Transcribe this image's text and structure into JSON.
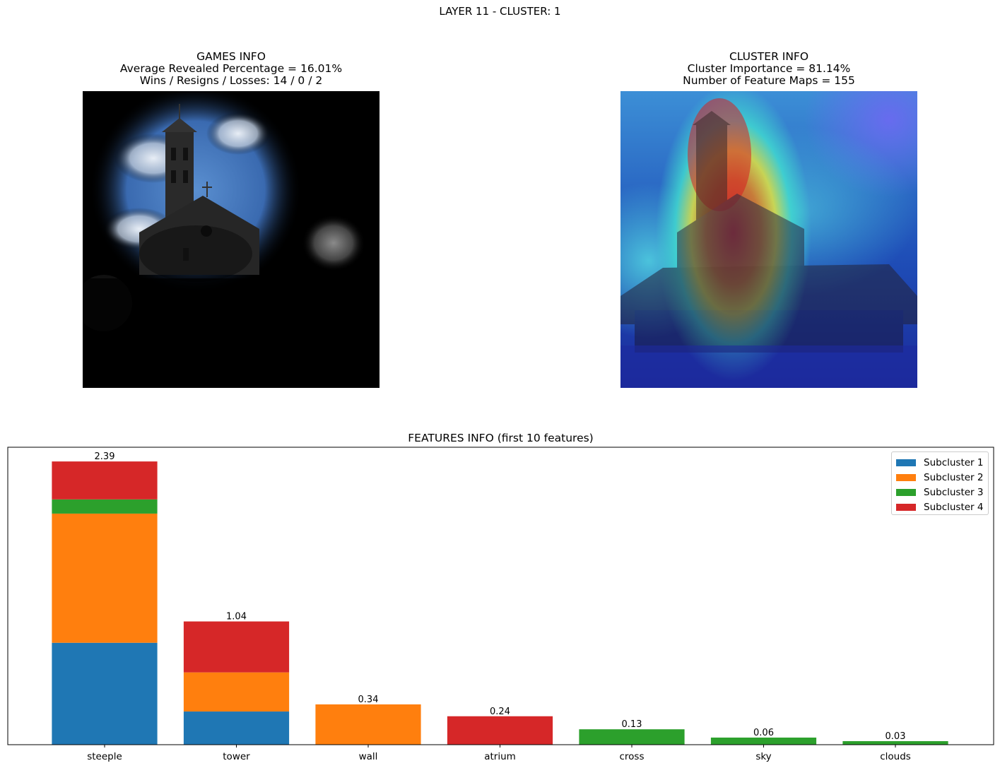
{
  "figure": {
    "title": "LAYER 11 - CLUSTER: 1"
  },
  "games_panel": {
    "title_lines": [
      "GAMES INFO",
      "Average Revealed Percentage = 16.01%",
      "Wins / Resigns / Losses: 14 / 0 / 2"
    ],
    "image": "church photo with revealed regions"
  },
  "cluster_panel": {
    "title_lines": [
      "CLUSTER INFO",
      "Cluster Importance = 81.14%",
      "Number of Feature Maps = 155"
    ],
    "image": "church photo with heatmap overlay"
  },
  "chart_data": {
    "type": "bar",
    "stacked": true,
    "title": "FEATURES INFO (first 10 features)",
    "categories": [
      "steeple",
      "tower",
      "wall",
      "atrium",
      "cross",
      "sky",
      "clouds"
    ],
    "series": [
      {
        "name": "Subcluster 1",
        "color": "#1f77b4",
        "values": [
          0.86,
          0.28,
          0,
          0,
          0,
          0,
          0
        ]
      },
      {
        "name": "Subcluster 2",
        "color": "#ff7f0e",
        "values": [
          1.09,
          0.33,
          0.34,
          0,
          0,
          0,
          0
        ]
      },
      {
        "name": "Subcluster 3",
        "color": "#2ca02c",
        "values": [
          0.12,
          0,
          0,
          0,
          0.13,
          0.06,
          0.03
        ]
      },
      {
        "name": "Subcluster 4",
        "color": "#d62728",
        "values": [
          0.32,
          0.43,
          0,
          0.24,
          0,
          0,
          0
        ]
      }
    ],
    "totals": [
      2.39,
      1.04,
      0.34,
      0.24,
      0.13,
      0.06,
      0.03
    ],
    "total_labels": [
      "2.39",
      "1.04",
      "0.34",
      "0.24",
      "0.13",
      "0.06",
      "0.03"
    ],
    "ylim": [
      0,
      2.51
    ],
    "xlabel": "",
    "ylabel": "",
    "grid": false,
    "legend_position": "top-right"
  }
}
